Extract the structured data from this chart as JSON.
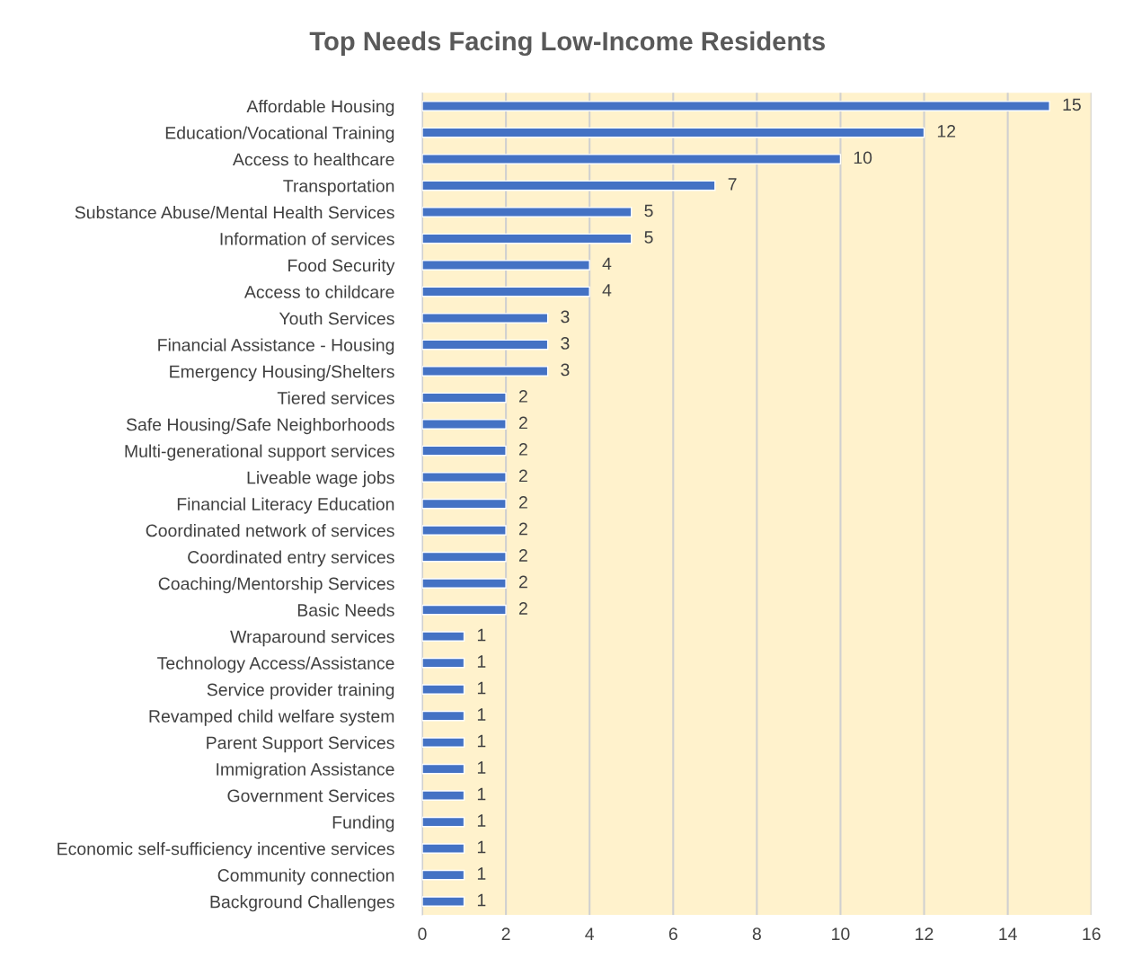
{
  "chart_data": {
    "type": "bar",
    "orientation": "horizontal",
    "title": "Top Needs Facing Low-Income Residents",
    "categories": [
      "Affordable Housing",
      "Education/Vocational Training",
      "Access to healthcare",
      "Transportation",
      "Substance Abuse/Mental Health Services",
      "Information of services",
      "Food Security",
      "Access to childcare",
      "Youth Services",
      "Financial Assistance - Housing",
      "Emergency Housing/Shelters",
      "Tiered services",
      "Safe Housing/Safe Neighborhoods",
      "Multi-generational support services",
      "Liveable wage jobs",
      "Financial Literacy Education",
      "Coordinated network of services",
      "Coordinated entry services",
      "Coaching/Mentorship Services",
      "Basic Needs",
      "Wraparound services",
      "Technology Access/Assistance",
      "Service provider training",
      "Revamped child welfare system",
      "Parent Support Services",
      "Immigration Assistance",
      "Government Services",
      "Funding",
      "Economic self-sufficiency incentive services",
      "Community connection",
      "Background Challenges"
    ],
    "values": [
      15,
      12,
      10,
      7,
      5,
      5,
      4,
      4,
      3,
      3,
      3,
      2,
      2,
      2,
      2,
      2,
      2,
      2,
      2,
      2,
      1,
      1,
      1,
      1,
      1,
      1,
      1,
      1,
      1,
      1,
      1
    ],
    "color": "#4472c4",
    "xlim": [
      0,
      16
    ],
    "xticks": [
      0,
      2,
      4,
      6,
      8,
      10,
      12,
      14,
      16
    ],
    "grid": "x",
    "data_labels": true
  }
}
